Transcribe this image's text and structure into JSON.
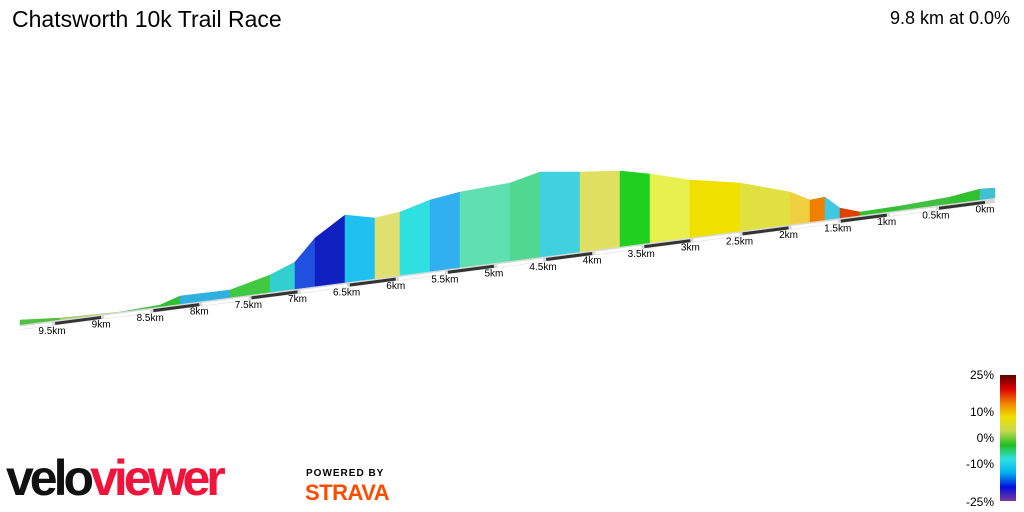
{
  "header": {
    "title": "Chatsworth 10k Trail Race",
    "summary": "9.8 km at 0.0%"
  },
  "chart_data": {
    "type": "area",
    "title": "Chatsworth 10k Trail Race",
    "xlabel": "",
    "ylabel": "",
    "x_ticks": [
      "0km",
      "0.5km",
      "1km",
      "1.5km",
      "2km",
      "2.5km",
      "3km",
      "3.5km",
      "4km",
      "4.5km",
      "5km",
      "5.5km",
      "6km",
      "6.5km",
      "7km",
      "7.5km",
      "8km",
      "8.5km",
      "9km",
      "9.5km"
    ],
    "x_range_km": [
      0,
      9.8
    ],
    "x_direction": "right-to-left",
    "color_scale": {
      "labels": [
        "25%",
        "10%",
        "0%",
        "-10%",
        "-25%"
      ],
      "colors": [
        "#5a0000",
        "#e00000",
        "#f08000",
        "#f0e000",
        "#c8d850",
        "#20c020",
        "#30e0e0",
        "#00b0f0",
        "#0010e0",
        "#7a3a9a"
      ]
    }
  },
  "branding": {
    "logo_part1": "velo",
    "logo_part2": "viewer",
    "powered": "POWERED BY",
    "strava": "STRAVA"
  }
}
